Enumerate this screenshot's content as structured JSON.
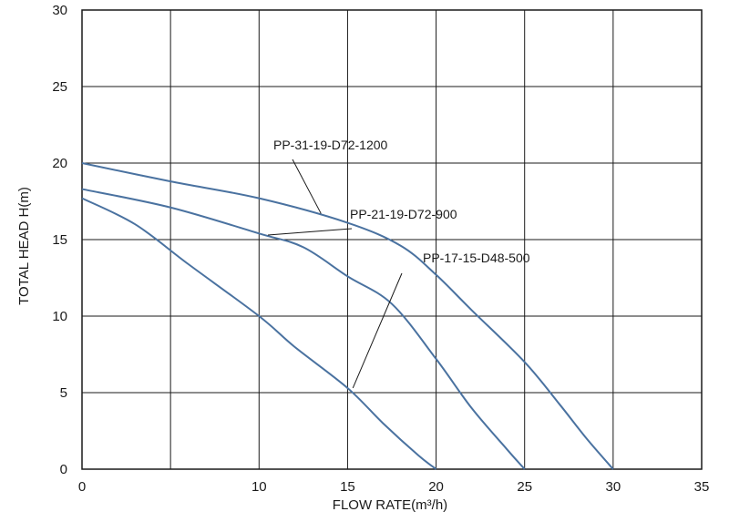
{
  "chart_data": {
    "type": "line",
    "title": "",
    "xlabel": "FLOW RATE(m³/h)",
    "ylabel": "TOTAL HEAD H(m)",
    "xlim": [
      0,
      35
    ],
    "ylim": [
      0,
      30
    ],
    "x_ticks": [
      "0",
      "10",
      "15",
      "20",
      "25",
      "30",
      "35"
    ],
    "x_tick_values": [
      0,
      10,
      15,
      20,
      25,
      30,
      35
    ],
    "y_ticks": [
      "0",
      "5",
      "10",
      "15",
      "20",
      "25",
      "30"
    ],
    "y_tick_values": [
      0,
      5,
      10,
      15,
      20,
      25,
      30
    ],
    "x_grid": [
      0,
      5,
      10,
      15,
      20,
      25,
      30,
      35
    ],
    "y_grid": [
      0,
      5,
      10,
      15,
      20,
      25,
      30
    ],
    "grid": true,
    "line_color": "#4a72a0",
    "series": [
      {
        "name": "PP-31-19-D72-1200",
        "points": [
          [
            0,
            20
          ],
          [
            5,
            18.8
          ],
          [
            10,
            17.7
          ],
          [
            15,
            16.1
          ],
          [
            18,
            14.6
          ],
          [
            20,
            12.7
          ],
          [
            22,
            10.4
          ],
          [
            25,
            7.0
          ],
          [
            27,
            4.2
          ],
          [
            28.5,
            2.0
          ],
          [
            30,
            0
          ]
        ],
        "label_anchor": [
          13.5,
          16.7
        ]
      },
      {
        "name": "PP-21-19-D72-900",
        "points": [
          [
            0,
            18.3
          ],
          [
            5,
            17.1
          ],
          [
            10,
            15.4
          ],
          [
            12.5,
            14.5
          ],
          [
            15,
            12.6
          ],
          [
            17.5,
            10.8
          ],
          [
            20,
            7.2
          ],
          [
            22,
            4.0
          ],
          [
            24,
            1.3
          ],
          [
            25,
            0
          ]
        ],
        "label_anchor": [
          10.5,
          15.3
        ]
      },
      {
        "name": "PP-17-15-D48-500",
        "points": [
          [
            0,
            17.7
          ],
          [
            3,
            16.0
          ],
          [
            6,
            13.4
          ],
          [
            10,
            10.0
          ],
          [
            12,
            8.0
          ],
          [
            15,
            5.3
          ],
          [
            17,
            3.0
          ],
          [
            19,
            0.9
          ],
          [
            20,
            0
          ]
        ],
        "label_anchor": [
          15.3,
          5.3
        ]
      }
    ]
  }
}
